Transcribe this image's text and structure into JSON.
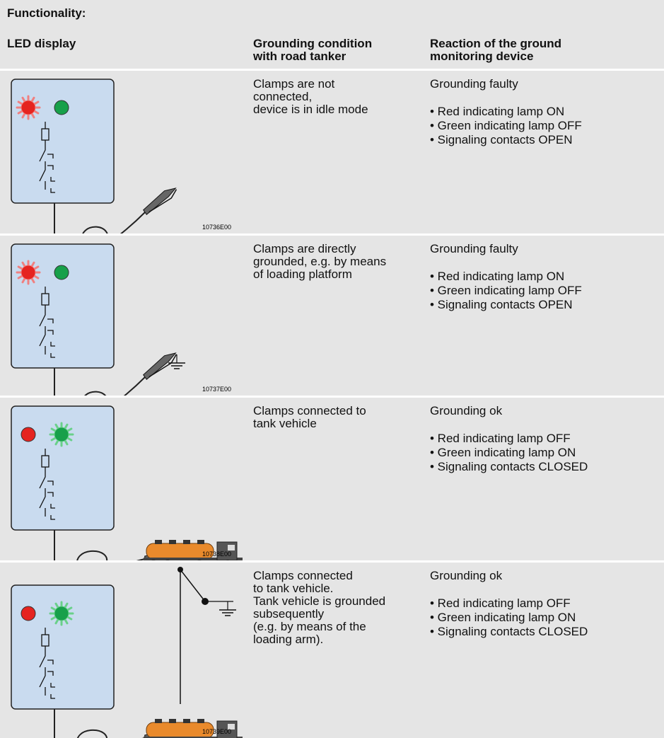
{
  "title": "Functionality:",
  "header": {
    "led": "LED display",
    "condition": [
      "Grounding condition",
      "with road tanker"
    ],
    "reaction": [
      "Reaction of the ground",
      "monitoring device"
    ]
  },
  "rows": [
    {
      "figure": "10736E00",
      "condition": [
        "Clamps are not",
        "connected,",
        "device is in idle mode"
      ],
      "status": "Grounding faulty",
      "items": [
        "• Red indicating lamp ON",
        "• Green indicating lamp OFF",
        "• Signaling contacts OPEN"
      ]
    },
    {
      "figure": "10737E00",
      "condition": [
        "Clamps are directly",
        "grounded, e.g. by means",
        "of loading platform"
      ],
      "status": "Grounding faulty",
      "items": [
        "• Red indicating lamp ON",
        "• Green indicating lamp OFF",
        "• Signaling contacts OPEN"
      ]
    },
    {
      "figure": "10738E00",
      "condition": [
        "Clamps connected to",
        "tank vehicle"
      ],
      "status": "Grounding ok",
      "items": [
        "• Red indicating lamp OFF",
        "• Green indicating lamp ON",
        "• Signaling contacts CLOSED"
      ]
    },
    {
      "figure": "10739E00",
      "condition": [
        "Clamps connected",
        "to tank vehicle.",
        "Tank vehicle is grounded",
        "subsequently",
        "(e.g. by means of the",
        "loading arm)."
      ],
      "status": "Grounding ok",
      "items": [
        "• Red indicating lamp OFF",
        "• Green indicating lamp ON",
        "• Signaling contacts CLOSED"
      ]
    }
  ]
}
